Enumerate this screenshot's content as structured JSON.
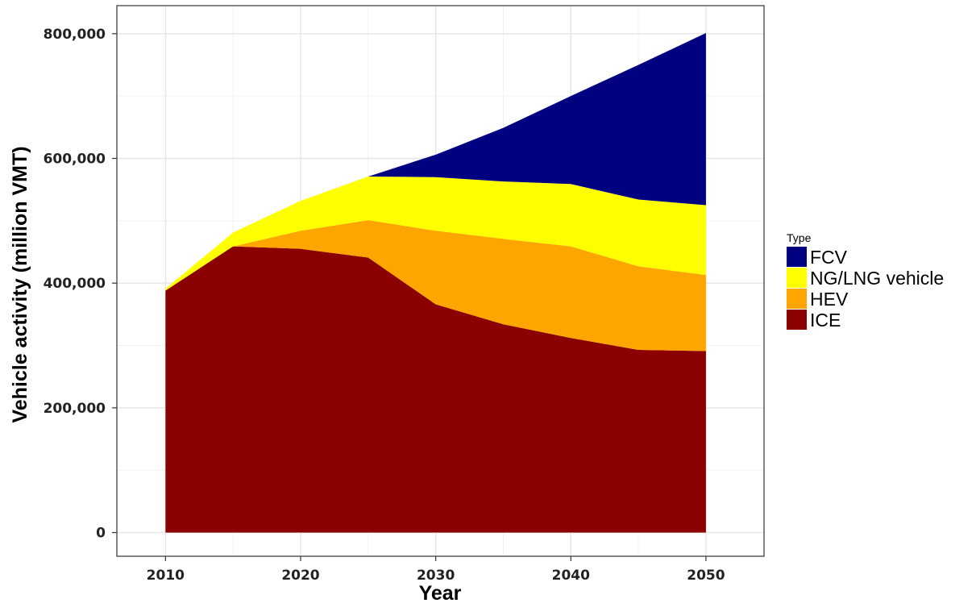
{
  "chart_data": {
    "type": "area",
    "stacked": true,
    "x": [
      2010,
      2015,
      2020,
      2025,
      2030,
      2035,
      2040,
      2045,
      2050
    ],
    "series": [
      {
        "name": "ICE",
        "color": "#8B0000",
        "values": [
          388000,
          459000,
          455000,
          441000,
          366000,
          334000,
          312000,
          293000,
          291000
        ]
      },
      {
        "name": "HEV",
        "color": "#FFA500",
        "values": [
          0,
          0,
          29000,
          60000,
          118000,
          137000,
          147000,
          134000,
          122000
        ]
      },
      {
        "name": "NG/LNG vehicle",
        "color": "#FFFF00",
        "values": [
          3000,
          22000,
          48000,
          70000,
          86000,
          92000,
          100000,
          107000,
          112000
        ]
      },
      {
        "name": "FCV",
        "color": "#000080",
        "values": [
          0,
          0,
          0,
          0,
          36000,
          86000,
          141000,
          216000,
          276000
        ]
      }
    ],
    "xlabel": "Year",
    "ylabel": "Vehicle activity (million VMT)",
    "xticks": [
      2010,
      2020,
      2030,
      2040,
      2050
    ],
    "yticks": [
      0,
      200000,
      400000,
      600000,
      800000
    ],
    "ytick_labels": [
      "0",
      "200,000",
      "400,000",
      "600,000",
      "800,000"
    ],
    "xlim": [
      2006.4,
      2054.3
    ],
    "ylim": [
      -38000,
      845000
    ],
    "grid": true,
    "legend": {
      "title": "Type",
      "placement": "right",
      "order": [
        "FCV",
        "NG/LNG vehicle",
        "HEV",
        "ICE"
      ]
    }
  }
}
